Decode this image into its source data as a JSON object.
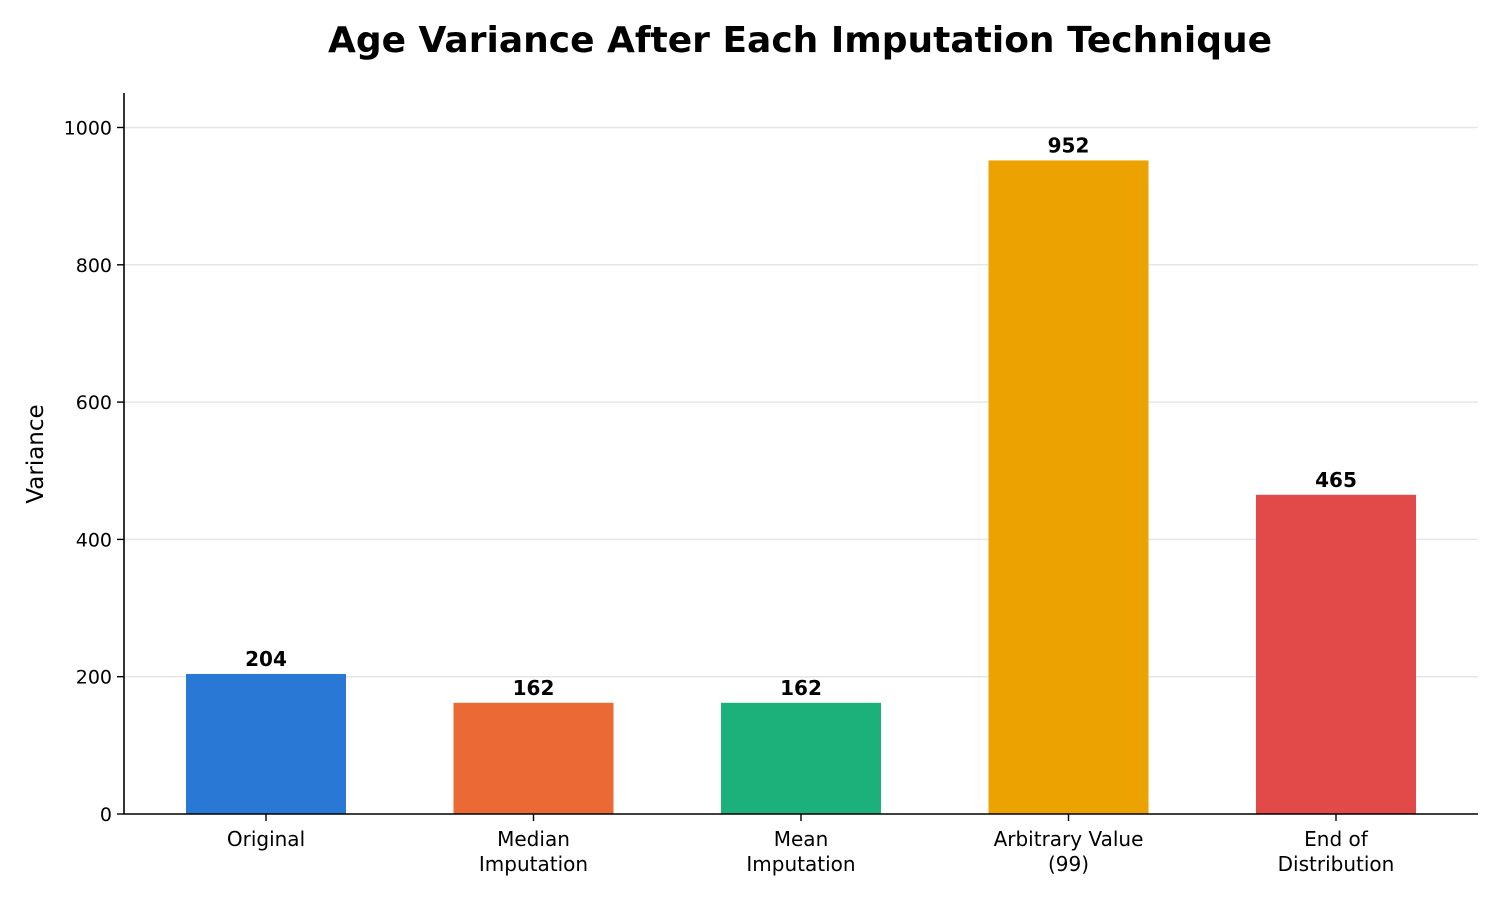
{
  "chart_data": {
    "type": "bar",
    "title": "Age Variance After Each Imputation Technique",
    "xlabel": "",
    "ylabel": "Variance",
    "categories": [
      [
        "Original"
      ],
      [
        "Median",
        "Imputation"
      ],
      [
        "Mean",
        "Imputation"
      ],
      [
        "Arbitrary Value",
        "(99)"
      ],
      [
        "End of",
        "Distribution"
      ]
    ],
    "values": [
      204,
      162,
      162,
      952,
      465
    ],
    "value_labels": [
      "204",
      "162",
      "162",
      "952",
      "465"
    ],
    "colors": [
      "#2a78d6",
      "#eb6935",
      "#1cb07a",
      "#eca200",
      "#e24a4a"
    ],
    "ylim": [
      0,
      1050
    ],
    "yticks": [
      0,
      200,
      400,
      600,
      800,
      1000
    ],
    "grid": "horizontal",
    "legend": "none"
  }
}
